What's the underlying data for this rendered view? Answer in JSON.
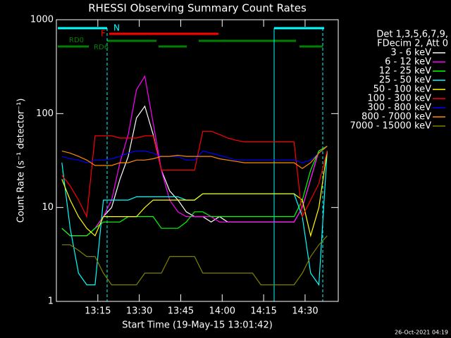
{
  "chart_data": {
    "type": "line",
    "title": "RHESSI Observing Summary Count Rates",
    "x_label": "Start Time (19-May-15 13:01:42)",
    "y_label": "Count Rate (s⁻¹ detector⁻¹)",
    "legend_title": [
      "Det 1,3,5,6,7,9,",
      "FDecim 2, Att 0"
    ],
    "footer": "26-Oct-2021 04:19",
    "flags": [
      "N",
      "F",
      "RD0",
      "RD6"
    ],
    "log_y": true,
    "xlim": [
      780,
      882
    ],
    "xticks": [
      {
        "value": 795,
        "label": "13:15"
      },
      {
        "value": 810,
        "label": "13:30"
      },
      {
        "value": 825,
        "label": "13:45"
      },
      {
        "value": 840,
        "label": "14:00"
      },
      {
        "value": 855,
        "label": "14:15"
      },
      {
        "value": 870,
        "label": "14:30"
      }
    ],
    "ylim": [
      1,
      1000
    ],
    "yticks": [
      1,
      10,
      100,
      1000
    ],
    "x": [
      782,
      785,
      788,
      791,
      794,
      797,
      800,
      803,
      806,
      809,
      812,
      815,
      818,
      821,
      824,
      827,
      830,
      833,
      836,
      839,
      842,
      845,
      848,
      851,
      854,
      857,
      860,
      863,
      866,
      869,
      872,
      875,
      878
    ],
    "series": [
      {
        "name": "3 - 6 keV",
        "color": "#000000",
        "values": [
          6,
          5,
          5,
          5,
          6,
          8,
          10,
          20,
          35,
          90,
          120,
          60,
          25,
          15,
          12,
          9,
          8,
          8,
          7,
          8,
          7,
          7,
          7,
          7,
          7,
          7,
          7,
          7,
          7,
          10,
          20,
          40,
          45
        ]
      },
      {
        "name": "6 - 12 keV",
        "color": "#ff00ff",
        "values": [
          6,
          5,
          5,
          5,
          6,
          8,
          12,
          30,
          60,
          180,
          250,
          80,
          25,
          12,
          9,
          8,
          8,
          8,
          8,
          7,
          7,
          7,
          7,
          7,
          7,
          7,
          7,
          7,
          7,
          10,
          20,
          40,
          45
        ]
      },
      {
        "name": "12 - 25 keV",
        "color": "#00ff00",
        "values": [
          6,
          5,
          5,
          5,
          6,
          7,
          7,
          7,
          8,
          8,
          8,
          8,
          6,
          6,
          6,
          7,
          9,
          9,
          8,
          8,
          8,
          8,
          8,
          8,
          8,
          8,
          8,
          8,
          8,
          12,
          25,
          40,
          45
        ]
      },
      {
        "name": "25 - 50 keV",
        "color": "#00ffff",
        "values": [
          30,
          6,
          2,
          1.5,
          1.5,
          12,
          12,
          12,
          12,
          13,
          13,
          13,
          13,
          13,
          13,
          12,
          12,
          14,
          14,
          14,
          14,
          14,
          14,
          14,
          14,
          14,
          14,
          14,
          14,
          8,
          2,
          1.5,
          40
        ]
      },
      {
        "name": "50 - 100 keV",
        "color": "#ffff00",
        "values": [
          20,
          12,
          8,
          6,
          5,
          8,
          8,
          8,
          8,
          8,
          10,
          12,
          12,
          12,
          12,
          12,
          12,
          14,
          14,
          14,
          14,
          14,
          14,
          14,
          14,
          14,
          14,
          14,
          14,
          12,
          5,
          10,
          40
        ]
      },
      {
        "name": "100 - 300 keV",
        "color": "#ff0000",
        "values": [
          22,
          17,
          12,
          8,
          58,
          58,
          58,
          55,
          55,
          55,
          58,
          58,
          25,
          25,
          25,
          25,
          25,
          65,
          65,
          60,
          55,
          52,
          50,
          50,
          50,
          50,
          50,
          50,
          50,
          8,
          12,
          18,
          40
        ]
      },
      {
        "name": "300 - 800 keV",
        "color": "#0000ff",
        "values": [
          35,
          33,
          32,
          30,
          32,
          32,
          33,
          35,
          38,
          40,
          40,
          38,
          35,
          35,
          35,
          32,
          32,
          40,
          38,
          36,
          34,
          32,
          32,
          32,
          32,
          32,
          32,
          32,
          32,
          30,
          32,
          38,
          45
        ]
      },
      {
        "name": "800 - 7000 keV",
        "color": "#ff8c00",
        "values": [
          40,
          38,
          35,
          32,
          28,
          28,
          28,
          30,
          30,
          32,
          32,
          33,
          35,
          35,
          36,
          35,
          35,
          35,
          35,
          33,
          32,
          31,
          30,
          30,
          30,
          30,
          30,
          30,
          30,
          26,
          30,
          38,
          45
        ]
      },
      {
        "name": "7000 - 15000 keV",
        "color": "#808000",
        "values": [
          4,
          4,
          3.5,
          3,
          3,
          2,
          1.5,
          1.5,
          1.5,
          1.5,
          2,
          2,
          2,
          3,
          3,
          3,
          3,
          2,
          2,
          2,
          2,
          2,
          2,
          2,
          1.5,
          1.5,
          1.5,
          1.5,
          1.5,
          2,
          3,
          4,
          5
        ]
      }
    ]
  }
}
